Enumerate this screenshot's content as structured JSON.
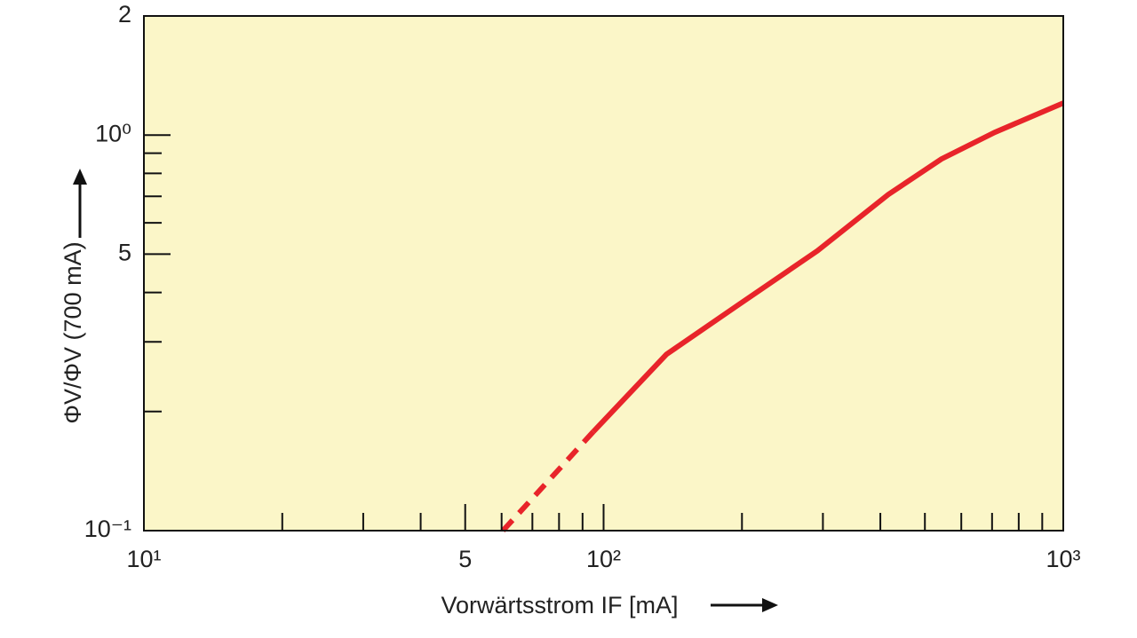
{
  "chart_data": {
    "type": "line",
    "x_label": "Vorwärtsstrom IF [mA]",
    "y_label": "ΦV/ΦV (700 mA)",
    "xscale": "log",
    "yscale": "log",
    "xlim": [
      10,
      1000
    ],
    "ylim": [
      0.1,
      2
    ],
    "xticks": [
      {
        "value": 10,
        "label": "10¹"
      },
      {
        "value": 50,
        "label": "5"
      },
      {
        "value": 100,
        "label": "10²"
      },
      {
        "value": 1000,
        "label": "10³"
      }
    ],
    "yticks": [
      {
        "value": 0.1,
        "label": "10⁻¹"
      },
      {
        "value": 0.5,
        "label": "5"
      },
      {
        "value": 1,
        "label": "10⁰"
      },
      2
    ],
    "xminor_ticks": [
      20,
      30,
      40,
      60,
      70,
      80,
      90,
      200,
      300,
      400,
      500,
      600,
      700,
      800,
      900
    ],
    "yminor_ticks": [
      0.2,
      0.3,
      0.4,
      0.6,
      0.7,
      0.8,
      0.9
    ],
    "background": "#fbf6c8",
    "series": [
      {
        "color": "#e8242a",
        "style": "dashed",
        "x": [
          60.4,
          95
        ],
        "values": [
          0.1,
          0.178
        ]
      },
      {
        "color": "#e8242a",
        "style": "solid",
        "x": [
          95,
          137,
          195,
          292,
          416,
          543,
          710,
          1000
        ],
        "values": [
          0.178,
          0.279,
          0.37,
          0.51,
          0.707,
          0.87,
          1.016,
          1.205
        ]
      }
    ]
  }
}
